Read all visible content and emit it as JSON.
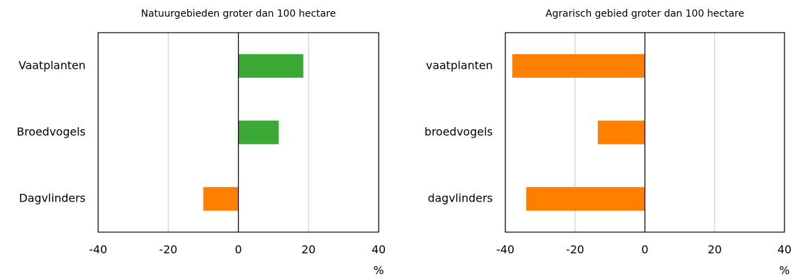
{
  "chart_data": [
    {
      "type": "bar",
      "orientation": "horizontal",
      "title": "Natuurgebieden groter dan 100 hectare",
      "categories": [
        "Vaatplanten",
        "Broedvogels",
        "Dagvlinders"
      ],
      "values": [
        18.5,
        11.5,
        -10
      ],
      "colors": [
        "#3aaa35",
        "#3aaa35",
        "#ff7f00"
      ],
      "xlim": [
        -40,
        40
      ],
      "xticks": [
        -40,
        -20,
        0,
        20,
        40
      ],
      "xlabel": "%",
      "grid": true
    },
    {
      "type": "bar",
      "orientation": "horizontal",
      "title": "Agrarisch gebied groter dan 100 hectare",
      "categories": [
        "vaatplanten",
        "broedvogels",
        "dagvlinders"
      ],
      "values": [
        -38,
        -13.5,
        -34
      ],
      "colors": [
        "#ff7f00",
        "#ff7f00",
        "#ff7f00"
      ],
      "xlim": [
        -40,
        40
      ],
      "xticks": [
        -40,
        -20,
        0,
        20,
        40
      ],
      "xlabel": "%",
      "grid": true
    }
  ]
}
